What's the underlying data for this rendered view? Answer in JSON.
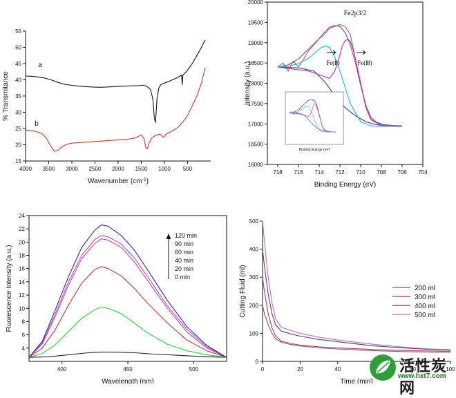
{
  "chart_data": [
    {
      "id": "ftir",
      "type": "line",
      "xlabel": "Wavenumber (cm",
      "xlabel_sup": "-1",
      "xlabel_close": ")",
      "ylabel": "% Transmitance",
      "xlim": [
        4000,
        0
      ],
      "ylim": [
        15,
        55
      ],
      "xticks": [
        4000,
        3500,
        3000,
        2500,
        2000,
        1500,
        1000,
        500
      ],
      "yticks": [
        15,
        20,
        25,
        30,
        35,
        40,
        45,
        50,
        55
      ],
      "grid": false,
      "annotations": [
        "a",
        "b"
      ],
      "series": [
        {
          "color": "#111111",
          "x": [
            3990,
            3800,
            3600,
            3450,
            3300,
            3150,
            3000,
            2800,
            2600,
            2400,
            2200,
            2000,
            1800,
            1600,
            1450,
            1380,
            1300,
            1250,
            1220,
            1195,
            1180,
            1160,
            1120,
            1080,
            1000,
            900,
            800,
            700,
            630,
            615,
            600,
            560,
            500,
            400,
            300,
            200,
            120
          ],
          "y": [
            41.2,
            41.0,
            40.6,
            40.0,
            39.2,
            38.6,
            38.3,
            38.0,
            37.8,
            37.7,
            37.8,
            38.0,
            38.1,
            38.2,
            38.3,
            38.0,
            37.0,
            34.0,
            28.5,
            26.8,
            29.5,
            34.5,
            37.5,
            38.5,
            39.0,
            39.5,
            40.2,
            40.8,
            41.5,
            38.5,
            41.5,
            42.0,
            43.0,
            45.0,
            47.5,
            50.0,
            52.3
          ]
        },
        {
          "color": "#c0392b",
          "x": [
            3990,
            3800,
            3650,
            3550,
            3450,
            3380,
            3300,
            3200,
            3100,
            3000,
            2800,
            2600,
            2400,
            2200,
            2000,
            1800,
            1650,
            1500,
            1440,
            1400,
            1370,
            1330,
            1280,
            1200,
            1100,
            1020,
            960,
            900,
            800,
            700,
            600,
            500,
            400,
            300,
            200,
            120
          ],
          "y": [
            24.5,
            24.2,
            23.5,
            22.0,
            19.5,
            18.0,
            18.3,
            19.5,
            20.2,
            20.5,
            20.7,
            20.9,
            21.1,
            21.3,
            21.5,
            21.7,
            22.0,
            23.0,
            21.8,
            19.0,
            18.7,
            20.5,
            22.0,
            22.8,
            23.3,
            22.3,
            23.3,
            23.8,
            24.5,
            25.5,
            27.0,
            29.0,
            32.0,
            35.0,
            39.0,
            43.8
          ]
        }
      ]
    },
    {
      "id": "xps",
      "type": "line",
      "xlabel": "Binding Energy (eV)",
      "ylabel": "Intensity (a.u.)",
      "xlim": [
        719,
        704
      ],
      "ylim": [
        16000,
        20000
      ],
      "xticks": [
        718,
        716,
        714,
        712,
        710,
        708,
        706,
        704
      ],
      "yticks": [
        16000,
        16500,
        17000,
        17500,
        18000,
        18500,
        19000,
        19500,
        20000
      ],
      "grid": false,
      "annotations": [
        "Fe2p3/2",
        "Fe(Ⅱ)",
        "Fe(Ⅲ)"
      ],
      "series": [
        {
          "color": "#777777",
          "x": [
            718,
            717.5,
            717,
            716.5,
            716,
            715.5,
            715,
            714.5,
            714,
            713.5,
            713,
            712.5,
            712,
            711.5,
            711,
            710.5,
            710,
            709.5,
            709,
            708.5,
            708,
            707.5,
            707,
            706.5,
            706
          ],
          "y": [
            18400,
            18500,
            18300,
            18550,
            18400,
            18600,
            18800,
            18950,
            19100,
            19200,
            19350,
            19400,
            19450,
            19400,
            19200,
            18600,
            18000,
            17450,
            17150,
            17050,
            17000,
            16950,
            16950,
            16950,
            16950
          ]
        },
        {
          "color": "#2b3a9e",
          "x": [
            718,
            716,
            714.5,
            713.5,
            712.5,
            711.5,
            710.5,
            709.5,
            708.5,
            707.5,
            706.5,
            706
          ],
          "y": [
            18400,
            18380,
            18300,
            18050,
            17700,
            17400,
            17200,
            17050,
            16980,
            16950,
            16940,
            16940
          ]
        },
        {
          "color": "#b03a6e",
          "x": [
            718,
            717,
            716,
            715,
            714,
            713.5,
            713,
            712.5,
            712,
            711.5,
            711,
            710.5,
            710,
            709.5,
            709,
            708.5,
            708,
            707,
            706
          ],
          "y": [
            18400,
            18450,
            18600,
            18850,
            19100,
            19250,
            19380,
            19420,
            19400,
            19250,
            18950,
            18500,
            17950,
            17450,
            17150,
            17030,
            16990,
            16960,
            16950
          ]
        },
        {
          "color": "#22b8d4",
          "x": [
            718,
            717,
            716,
            715,
            714.2,
            713.8,
            713.4,
            713,
            712.5,
            712,
            711.5,
            711,
            710,
            709,
            708,
            707,
            706
          ],
          "y": [
            18400,
            18420,
            18480,
            18620,
            18800,
            18880,
            18920,
            18880,
            18650,
            18300,
            17900,
            17500,
            17050,
            16950,
            16940,
            16940,
            16940
          ]
        },
        {
          "color": "#c0309a",
          "x": [
            718,
            715,
            713,
            712.5,
            712,
            711.8,
            711.5,
            711.2,
            711,
            710.8,
            710.5,
            710,
            709.5,
            709,
            708,
            706
          ],
          "y": [
            18400,
            18300,
            18120,
            18300,
            18700,
            18900,
            19050,
            19080,
            19030,
            18900,
            18600,
            18000,
            17400,
            17100,
            16960,
            16940
          ]
        }
      ]
    },
    {
      "id": "fluorescence",
      "type": "line",
      "xlabel": "Wavelength (nm)",
      "ylabel": "Fluorescence Intensity (a.u.)",
      "xlim": [
        375,
        525
      ],
      "ylim": [
        2,
        24
      ],
      "xticks": [
        400,
        450,
        500
      ],
      "yticks": [
        4,
        6,
        8,
        10,
        12,
        14,
        16,
        18,
        20,
        22,
        24
      ],
      "grid": false,
      "annotations": [
        "120 min",
        "90 min",
        "60 min",
        "40 min",
        "20 min",
        "0 min"
      ],
      "series": [
        {
          "color": "#222222",
          "x": [
            375,
            390,
            405,
            420,
            430,
            440,
            455,
            470,
            490,
            510,
            525
          ],
          "y": [
            2.6,
            2.7,
            3.0,
            3.3,
            3.4,
            3.4,
            3.3,
            3.1,
            2.9,
            2.7,
            2.6
          ]
        },
        {
          "color": "#2ecc40",
          "x": [
            375,
            385,
            395,
            405,
            415,
            425,
            430,
            435,
            445,
            455,
            465,
            480,
            495,
            510,
            525
          ],
          "y": [
            2.6,
            3.2,
            4.5,
            6.5,
            8.5,
            9.8,
            10.2,
            10.0,
            9.2,
            7.8,
            6.3,
            4.6,
            3.6,
            3.0,
            2.6
          ]
        },
        {
          "color": "#b03a3a",
          "x": [
            375,
            385,
            395,
            405,
            415,
            425,
            430,
            435,
            445,
            455,
            465,
            480,
            495,
            510,
            525
          ],
          "y": [
            2.6,
            4.0,
            6.8,
            10.5,
            13.8,
            15.9,
            16.3,
            16.0,
            14.9,
            13.0,
            10.8,
            7.8,
            5.2,
            3.6,
            2.6
          ]
        },
        {
          "color": "#9b59b6",
          "x": [
            375,
            385,
            395,
            405,
            415,
            425,
            430,
            435,
            445,
            455,
            465,
            480,
            495,
            510,
            525
          ],
          "y": [
            2.6,
            4.6,
            8.8,
            13.5,
            17.5,
            19.8,
            20.5,
            20.3,
            19.2,
            17.0,
            14.2,
            10.0,
            6.4,
            4.0,
            2.6
          ]
        },
        {
          "color": "#d63fae",
          "x": [
            375,
            385,
            395,
            405,
            415,
            425,
            430,
            435,
            445,
            455,
            465,
            480,
            495,
            510,
            525
          ],
          "y": [
            2.6,
            4.8,
            9.2,
            14.0,
            18.0,
            20.4,
            21.0,
            20.8,
            19.7,
            17.6,
            14.8,
            10.4,
            6.8,
            4.2,
            2.6
          ]
        },
        {
          "color": "#2a2a9c",
          "x": [
            375,
            385,
            395,
            405,
            415,
            425,
            430,
            435,
            445,
            455,
            465,
            480,
            495,
            510,
            525
          ],
          "y": [
            2.6,
            5.0,
            9.8,
            14.8,
            19.2,
            21.8,
            22.6,
            22.4,
            21.0,
            18.8,
            15.8,
            11.2,
            7.2,
            4.4,
            2.6
          ]
        }
      ]
    },
    {
      "id": "cutting",
      "type": "line",
      "xlabel": "Time (min)",
      "ylabel": "Cutting Fluid (ml)",
      "xlim": [
        0,
        100
      ],
      "ylim": [
        0,
        500
      ],
      "xticks": [
        0,
        20,
        40,
        60,
        80,
        100
      ],
      "yticks": [
        0,
        100,
        200,
        300,
        400,
        500
      ],
      "grid": false,
      "legend": "right",
      "series": [
        {
          "name": "200 ml",
          "color": "#8a5a6a",
          "x": [
            0,
            1,
            2,
            3,
            5,
            7,
            10,
            15,
            20,
            30,
            40,
            50,
            60,
            70,
            80,
            90,
            100
          ],
          "y": [
            200,
            170,
            150,
            130,
            100,
            80,
            68,
            60,
            55,
            48,
            44,
            41,
            38,
            36,
            34,
            33,
            32
          ]
        },
        {
          "name": "300 ml",
          "color": "#a0405a",
          "x": [
            0,
            1,
            2,
            3,
            5,
            7,
            10,
            15,
            20,
            30,
            40,
            50,
            60,
            70,
            80,
            90,
            100
          ],
          "y": [
            300,
            250,
            210,
            170,
            120,
            90,
            72,
            64,
            58,
            52,
            48,
            45,
            42,
            40,
            38,
            37,
            36
          ]
        },
        {
          "name": "400 ml",
          "color": "#5a3a6a",
          "x": [
            0,
            1,
            2,
            3,
            5,
            7,
            10,
            15,
            20,
            30,
            40,
            50,
            60,
            70,
            80,
            90,
            100
          ],
          "y": [
            400,
            340,
            290,
            240,
            170,
            130,
            108,
            98,
            90,
            78,
            70,
            62,
            55,
            50,
            46,
            42,
            40
          ]
        },
        {
          "name": "500 ml",
          "color": "#b070c8",
          "x": [
            0,
            1,
            2,
            3,
            5,
            7,
            10,
            15,
            20,
            30,
            40,
            50,
            60,
            70,
            80,
            90,
            100
          ],
          "y": [
            500,
            430,
            360,
            300,
            210,
            150,
            122,
            110,
            100,
            86,
            76,
            68,
            60,
            54,
            48,
            44,
            42
          ]
        }
      ]
    }
  ],
  "watermark": {
    "site_name": "活性炭网",
    "url": "www.hxt7.com"
  }
}
